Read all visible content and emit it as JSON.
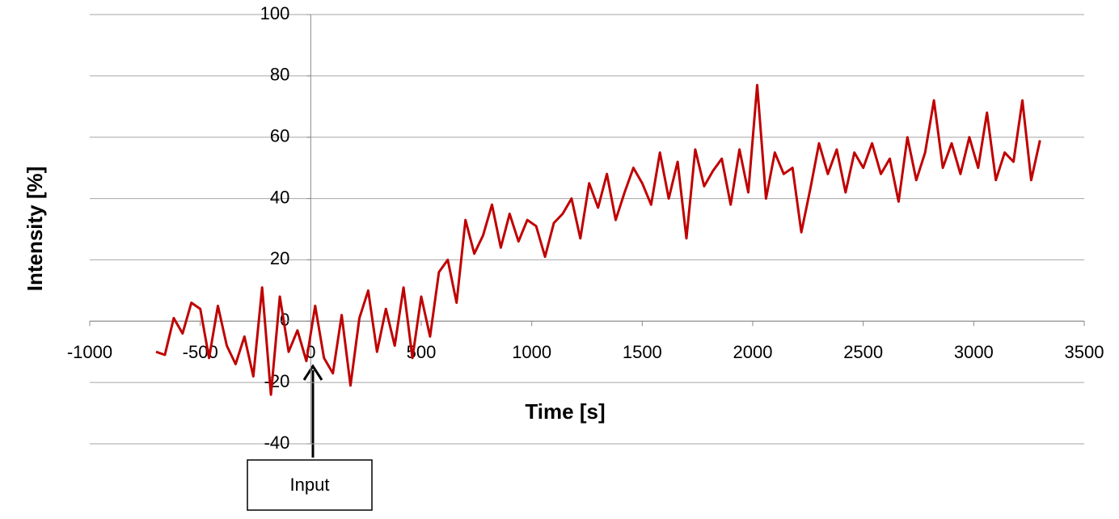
{
  "chart_data": {
    "type": "line",
    "x_label": "Time [s]",
    "y_label": "Intensity [%]",
    "annotation": "Input",
    "color": "#c00000",
    "grid": true,
    "xlim": [
      -1000,
      3500
    ],
    "xticks": [
      -1000,
      -500,
      0,
      500,
      1000,
      1500,
      2000,
      2500,
      3000,
      3500
    ],
    "ylim": [
      -40,
      100
    ],
    "yticks": [
      -40,
      -20,
      0,
      20,
      40,
      60,
      80,
      100
    ],
    "x": [
      -700,
      -660,
      -620,
      -580,
      -540,
      -500,
      -460,
      -420,
      -380,
      -340,
      -300,
      -260,
      -220,
      -180,
      -140,
      -100,
      -60,
      -20,
      20,
      60,
      100,
      140,
      180,
      220,
      260,
      300,
      340,
      380,
      420,
      460,
      500,
      540,
      580,
      620,
      660,
      700,
      740,
      780,
      820,
      860,
      900,
      940,
      980,
      1020,
      1060,
      1100,
      1140,
      1180,
      1220,
      1260,
      1300,
      1340,
      1380,
      1420,
      1460,
      1500,
      1540,
      1580,
      1620,
      1660,
      1700,
      1740,
      1780,
      1820,
      1860,
      1900,
      1940,
      1980,
      2020,
      2060,
      2100,
      2140,
      2180,
      2220,
      2260,
      2300,
      2340,
      2380,
      2420,
      2460,
      2500,
      2540,
      2580,
      2620,
      2660,
      2700,
      2740,
      2780,
      2820,
      2860,
      2900,
      2940,
      2980,
      3020,
      3060,
      3100,
      3140,
      3180,
      3220,
      3260,
      3300
    ],
    "values": [
      -10,
      -11,
      1,
      -4,
      6,
      4,
      -12,
      5,
      -8,
      -14,
      -5,
      -18,
      11,
      -24,
      8,
      -10,
      -3,
      -13,
      5,
      -12,
      -17,
      2,
      -21,
      1,
      10,
      -10,
      4,
      -8,
      11,
      -12,
      8,
      -5,
      16,
      20,
      6,
      33,
      22,
      28,
      38,
      24,
      35,
      26,
      33,
      31,
      21,
      32,
      35,
      40,
      27,
      45,
      37,
      48,
      33,
      42,
      50,
      45,
      38,
      55,
      40,
      52,
      27,
      56,
      44,
      49,
      53,
      38,
      56,
      42,
      77,
      40,
      55,
      48,
      50,
      29,
      43,
      58,
      48,
      56,
      42,
      55,
      50,
      58,
      48,
      53,
      39,
      60,
      46,
      55,
      72,
      50,
      58,
      48,
      60,
      50,
      68,
      46,
      55,
      52,
      72,
      46,
      59
    ]
  }
}
